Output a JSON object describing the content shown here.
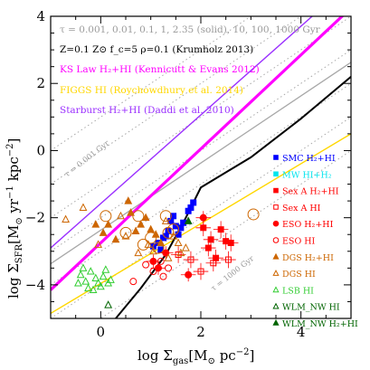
{
  "chart_data": {
    "type": "scatter",
    "xlim": [
      -1,
      5
    ],
    "ylim": [
      -5,
      4
    ],
    "x_ticks": [
      0,
      2,
      4
    ],
    "y_ticks": [
      -4,
      -2,
      0,
      2,
      4
    ],
    "xlabel_main": "log Σ",
    "xlabel_sub": "gas",
    "xlabel_unit": "[M",
    "xlabel_sun": "⊙",
    "xlabel_tail": " pc",
    "xlabel_sup": "−2",
    "xlabel_close": "]",
    "ylabel_main": "log Σ",
    "ylabel_sub": "SFR",
    "ylabel_unit": "[M",
    "ylabel_sun": "⊙",
    "ylabel_tail": " yr",
    "ylabel_sup1": "−1",
    "ylabel_tail2": " kpc",
    "ylabel_sup2": "−2",
    "ylabel_close": "]",
    "annotations": [
      {
        "text": "τ = 0.001, 0.01, 0.1, 1, 2.35 (solid), 10, 100, 1000 Gyr",
        "color": "#9a9a9a"
      },
      {
        "text": "Z=0.1 Z⊙ f_c=5 ρ=0.1 (Krumholz 2013)",
        "color": "#000000"
      },
      {
        "text": "KS Law H₂+HI (Kennicutt & Evans 2012)",
        "color": "#ff00ff"
      },
      {
        "text": "FIGGS HI (Roychowdhury et al. 2014)",
        "color": "#ffd700"
      },
      {
        "text": "Starburst H₂+HI (Daddi et al. 2010)",
        "color": "#9b30ff"
      }
    ],
    "isochrone_labels": {
      "short": "τ = 0.001 Gyr",
      "long": "τ = 1000 Gyr"
    },
    "depletion_times_gyr": [
      0.001,
      0.01,
      0.1,
      1,
      2.35,
      10,
      100,
      1000
    ],
    "relations": [
      {
        "name": "KS Law H₂+HI",
        "color": "#ff00ff",
        "x": [
          -1,
          5
        ],
        "y": [
          -4.15,
          4.25
        ]
      },
      {
        "name": "FIGGS HI",
        "color": "#ffd700",
        "x": [
          -1,
          5
        ],
        "y": [
          -4.85,
          0.5
        ]
      },
      {
        "name": "Starburst H₂+HI",
        "color": "#9b30ff",
        "x": [
          -1,
          4.3
        ],
        "y": [
          -2.9,
          4.1
        ]
      },
      {
        "name": "Krumholz 2013",
        "color": "#000000",
        "x": [
          0.3,
          0.8,
          1.3,
          1.7,
          2.0,
          3.0,
          4.0,
          5.0
        ],
        "y": [
          -5.0,
          -4.1,
          -3.1,
          -2.0,
          -1.1,
          -0.2,
          0.95,
          2.2
        ]
      }
    ],
    "legend": [
      {
        "label": "SMC H₂+HI",
        "color": "#0000ff",
        "marker": "square-filled"
      },
      {
        "label": "MW HI+H₂",
        "color": "#00e5ee",
        "marker": "square-filled"
      },
      {
        "label": "Sex A H₂+HI",
        "color": "#ff0000",
        "marker": "square-filled"
      },
      {
        "label": "Sex A HI",
        "color": "#ff0000",
        "marker": "square-open"
      },
      {
        "label": "ESO H₂+HI",
        "color": "#ff0000",
        "marker": "circle-filled"
      },
      {
        "label": "ESO HI",
        "color": "#ff0000",
        "marker": "circle-open"
      },
      {
        "label": "DGS H₂+HI",
        "color": "#cd6600",
        "marker": "triangle-filled"
      },
      {
        "label": "DGS HI",
        "color": "#cd6600",
        "marker": "triangle-open"
      },
      {
        "label": "LSB HI",
        "color": "#32cd32",
        "marker": "triangle-open"
      },
      {
        "label": "WLM_NW HI",
        "color": "#006400",
        "marker": "triangle-open"
      },
      {
        "label": "WLM_NW H₂+HI",
        "color": "#006400",
        "marker": "triangle-filled"
      }
    ],
    "series": [
      {
        "name": "SMC H₂+HI",
        "color": "#0000ff",
        "marker": "square-filled",
        "points": [
          [
            1.05,
            -2.85
          ],
          [
            1.15,
            -2.75
          ],
          [
            1.25,
            -2.6
          ],
          [
            1.35,
            -2.4
          ],
          [
            1.4,
            -2.1
          ],
          [
            1.45,
            -1.95
          ],
          [
            1.5,
            -2.25
          ],
          [
            1.55,
            -2.5
          ],
          [
            1.6,
            -2.3
          ],
          [
            1.65,
            -2.15
          ],
          [
            1.75,
            -1.8
          ],
          [
            1.8,
            -1.7
          ],
          [
            1.85,
            -1.55
          ],
          [
            1.3,
            -2.55
          ],
          [
            1.2,
            -2.95
          ]
        ]
      },
      {
        "name": "MW HI+H₂",
        "color": "#00e5ee",
        "marker": "square-filled",
        "points": []
      },
      {
        "name": "Sex A H₂+HI",
        "color": "#ff0000",
        "marker": "square-filled",
        "points": [
          [
            2.05,
            -2.3
          ],
          [
            2.2,
            -2.65
          ],
          [
            2.3,
            -3.2
          ],
          [
            2.4,
            -2.35
          ],
          [
            2.5,
            -2.7
          ],
          [
            2.6,
            -2.75
          ],
          [
            2.15,
            -2.9
          ]
        ],
        "xerr": 0.15,
        "yerr": 0.25
      },
      {
        "name": "Sex A HI",
        "color": "#ff0000",
        "marker": "square-open",
        "points": [
          [
            1.55,
            -3.1
          ],
          [
            1.8,
            -3.25
          ],
          [
            2.0,
            -3.6
          ],
          [
            2.25,
            -3.35
          ],
          [
            2.55,
            -3.25
          ]
        ],
        "xerr": 0.15,
        "yerr": 0.25
      },
      {
        "name": "ESO H₂+HI",
        "color": "#ff0000",
        "marker": "circle-filled",
        "points": [
          [
            1.05,
            -3.3
          ],
          [
            1.15,
            -3.5
          ],
          [
            1.3,
            -3.05
          ],
          [
            1.75,
            -3.7
          ],
          [
            2.05,
            -2.0
          ]
        ],
        "xerr": 0.15,
        "yerr": 0.2
      },
      {
        "name": "ESO HI",
        "color": "#ff0000",
        "marker": "circle-open",
        "points": [
          [
            0.65,
            -3.9
          ],
          [
            0.9,
            -3.4
          ],
          [
            1.05,
            -3.6
          ],
          [
            1.2,
            -3.3
          ],
          [
            1.35,
            -3.5
          ],
          [
            1.25,
            -3.75
          ]
        ]
      },
      {
        "name": "DGS H₂+HI",
        "color": "#cd6600",
        "marker": "triangle-filled",
        "points": [
          [
            -0.1,
            -2.2
          ],
          [
            0.05,
            -2.45
          ],
          [
            0.15,
            -2.2
          ],
          [
            0.3,
            -2.65
          ],
          [
            0.55,
            -1.5
          ],
          [
            0.6,
            -1.85
          ],
          [
            0.9,
            -2.0
          ],
          [
            0.8,
            -2.2
          ],
          [
            1.0,
            -2.35
          ],
          [
            1.1,
            -2.5
          ],
          [
            1.2,
            -2.75
          ],
          [
            0.7,
            -2.4
          ]
        ]
      },
      {
        "name": "DGS HI",
        "color": "#cd6600",
        "marker": "triangle-open",
        "points": [
          [
            -0.7,
            -2.05
          ],
          [
            -0.35,
            -1.7
          ],
          [
            -0.05,
            -2.8
          ],
          [
            0.4,
            -1.95
          ],
          [
            0.5,
            -2.55
          ],
          [
            0.75,
            -3.05
          ],
          [
            0.95,
            -2.8
          ],
          [
            1.05,
            -3.0
          ],
          [
            1.35,
            -3.2
          ],
          [
            1.45,
            -2.55
          ],
          [
            1.55,
            -2.75
          ],
          [
            1.3,
            -2.1
          ],
          [
            1.7,
            -2.9
          ],
          [
            1.6,
            -3.05
          ]
        ]
      },
      {
        "name": "LSB HI",
        "color": "#32cd32",
        "marker": "triangle-open",
        "points": [
          [
            -0.4,
            -3.7
          ],
          [
            -0.3,
            -3.9
          ],
          [
            -0.2,
            -3.6
          ],
          [
            -0.1,
            -3.8
          ],
          [
            -0.05,
            -3.95
          ],
          [
            0.05,
            -3.75
          ],
          [
            0.1,
            -3.55
          ],
          [
            0.15,
            -3.95
          ],
          [
            -0.25,
            -4.1
          ],
          [
            -0.15,
            -4.15
          ],
          [
            0.0,
            -4.05
          ],
          [
            -0.35,
            -3.5
          ],
          [
            0.2,
            -3.85
          ],
          [
            -0.45,
            -3.95
          ]
        ]
      },
      {
        "name": "WLM_NW HI",
        "color": "#006400",
        "marker": "triangle-open",
        "points": [
          [
            0.15,
            -4.6
          ]
        ]
      },
      {
        "name": "WLM_NW H₂+HI",
        "color": "#006400",
        "marker": "triangle-filled",
        "points": [
          [
            1.75,
            -2.1
          ]
        ]
      }
    ],
    "circled_points": [
      [
        0.1,
        -1.95
      ],
      [
        0.5,
        -2.45
      ],
      [
        0.85,
        -2.8
      ],
      [
        1.15,
        -2.9
      ],
      [
        1.0,
        -2.6
      ],
      [
        1.3,
        -1.95
      ],
      [
        3.05,
        -1.9
      ],
      [
        1.45,
        -2.35
      ],
      [
        1.35,
        -2.45
      ],
      [
        0.75,
        -1.95
      ]
    ]
  }
}
